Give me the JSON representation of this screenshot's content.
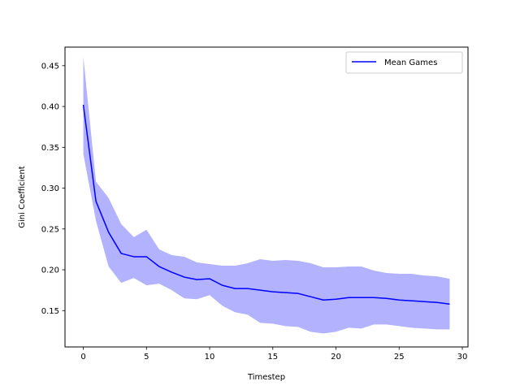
{
  "chart_data": {
    "type": "line",
    "title": "",
    "xlabel": "Timestep",
    "ylabel": "Gini Coefficient",
    "xlim": [
      -1.45,
      30.45
    ],
    "ylim": [
      0.1055,
      0.4727
    ],
    "xticks": [
      0,
      5,
      10,
      15,
      20,
      25,
      30
    ],
    "xtick_labels": [
      "0",
      "5",
      "10",
      "15",
      "20",
      "25",
      "30"
    ],
    "yticks": [
      0.15,
      0.2,
      0.25,
      0.3,
      0.35,
      0.4,
      0.45
    ],
    "ytick_labels": [
      "0.15",
      "0.20",
      "0.25",
      "0.30",
      "0.35",
      "0.40",
      "0.45"
    ],
    "grid": false,
    "legend_position": "top-right",
    "series": [
      {
        "name": "Mean Games",
        "color": "#0000ff",
        "band_color": "#0000ff",
        "band_opacity": 0.3,
        "x": [
          0,
          1,
          2,
          3,
          4,
          5,
          6,
          7,
          8,
          9,
          10,
          11,
          12,
          13,
          14,
          15,
          16,
          17,
          18,
          19,
          20,
          21,
          22,
          23,
          24,
          25,
          26,
          27,
          28,
          29
        ],
        "values": [
          0.402,
          0.284,
          0.246,
          0.22,
          0.216,
          0.216,
          0.204,
          0.197,
          0.191,
          0.188,
          0.189,
          0.181,
          0.177,
          0.177,
          0.175,
          0.173,
          0.172,
          0.171,
          0.167,
          0.163,
          0.164,
          0.166,
          0.166,
          0.166,
          0.165,
          0.163,
          0.162,
          0.161,
          0.16,
          0.158
        ],
        "lower": [
          0.342,
          0.26,
          0.204,
          0.184,
          0.19,
          0.181,
          0.183,
          0.175,
          0.165,
          0.164,
          0.169,
          0.156,
          0.148,
          0.145,
          0.135,
          0.134,
          0.131,
          0.13,
          0.124,
          0.122,
          0.124,
          0.129,
          0.128,
          0.133,
          0.133,
          0.131,
          0.129,
          0.128,
          0.127,
          0.127
        ],
        "upper": [
          0.461,
          0.308,
          0.288,
          0.256,
          0.24,
          0.249,
          0.225,
          0.218,
          0.216,
          0.209,
          0.207,
          0.205,
          0.205,
          0.208,
          0.213,
          0.211,
          0.212,
          0.211,
          0.208,
          0.203,
          0.203,
          0.204,
          0.204,
          0.199,
          0.196,
          0.195,
          0.195,
          0.193,
          0.192,
          0.189
        ]
      }
    ]
  }
}
